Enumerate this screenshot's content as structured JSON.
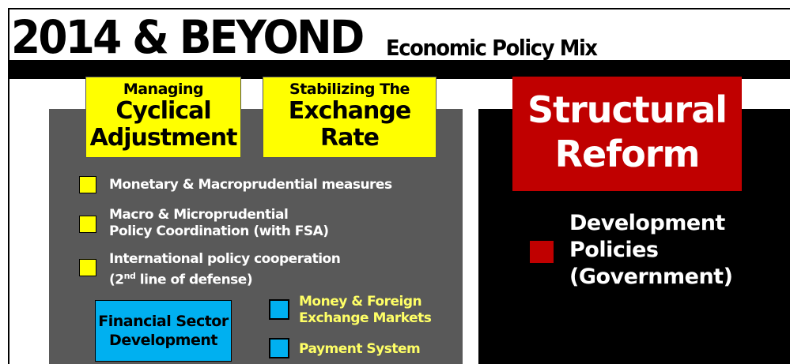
{
  "header": {
    "title": "2014 & BEYOND",
    "subtitle": "Economic Policy Mix"
  },
  "pillars": [
    {
      "lines": [
        "Managing",
        "Cyclical",
        "Adjustment"
      ]
    },
    {
      "lines": [
        "Stabilizing The",
        "Exchange",
        "Rate"
      ]
    },
    {
      "lines": [
        "Structural",
        "Reform"
      ]
    }
  ],
  "measures": [
    {
      "lines": [
        "Monetary & Macroprudential measures"
      ]
    },
    {
      "lines": [
        "Macro & Microprudential",
        "Policy Coordination (with FSA)"
      ]
    },
    {
      "lines": [
        "International policy cooperation"
      ],
      "note": [
        "(2",
        "nd",
        " line of defense)"
      ]
    }
  ],
  "financial_sector": {
    "lines": [
      "Financial Sector",
      "Development"
    ],
    "items": [
      {
        "lines": [
          "Money & Foreign",
          "Exchange Markets"
        ]
      },
      {
        "lines": [
          "Payment System"
        ]
      }
    ]
  },
  "development": {
    "lines": [
      "Development",
      "Policies",
      "(Government)"
    ]
  }
}
